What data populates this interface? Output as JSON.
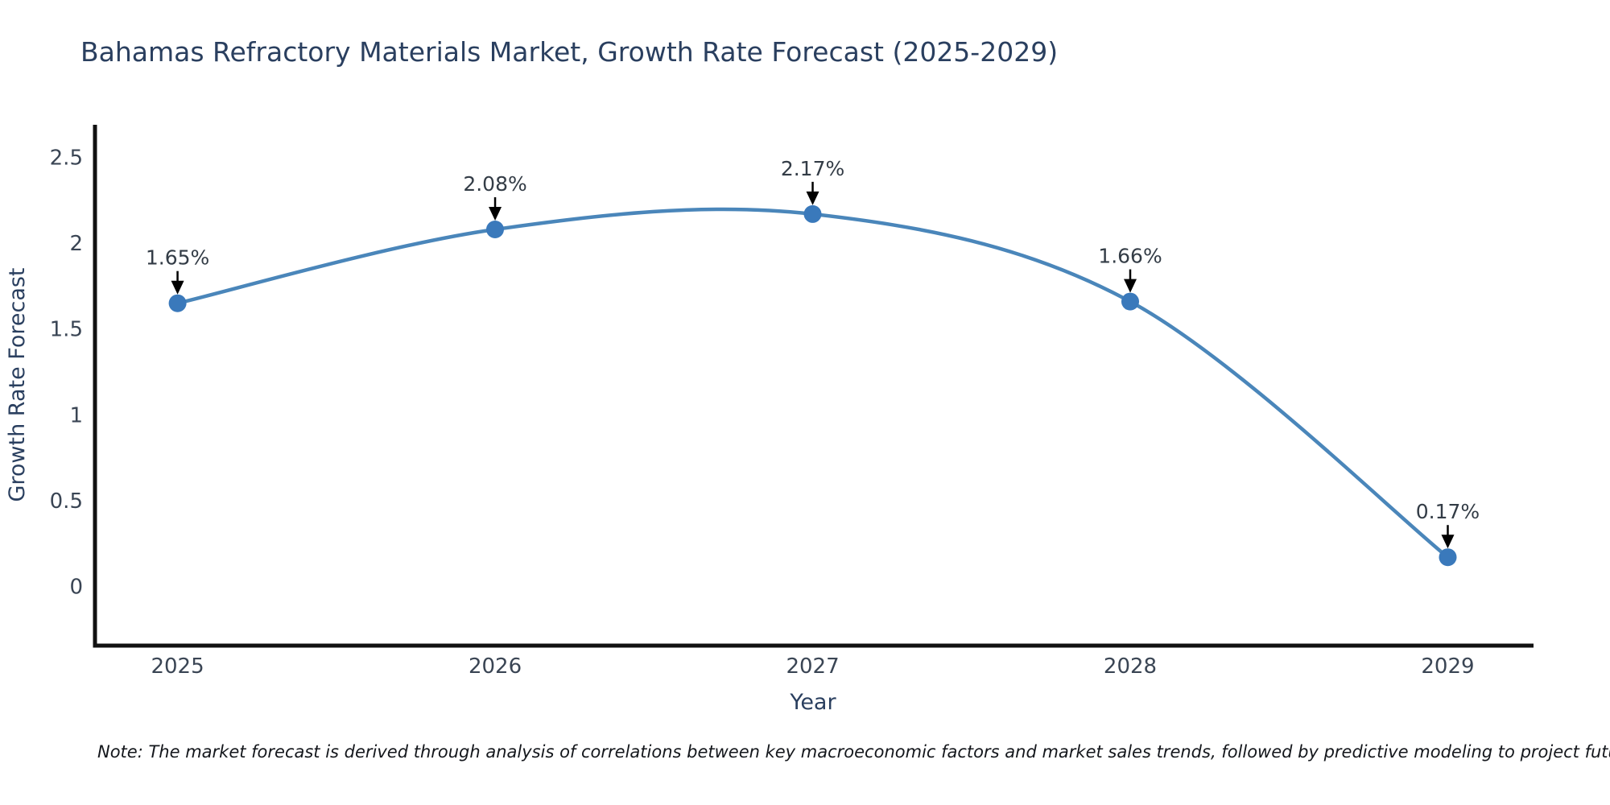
{
  "page": {
    "background": "#ffffff"
  },
  "chart_data": {
    "type": "line",
    "title": "Bahamas Refractory Materials Market, Growth Rate Forecast (2025-2029)",
    "xlabel": "Year",
    "ylabel": "Growth Rate Forecast",
    "x": [
      2025,
      2026,
      2027,
      2028,
      2029
    ],
    "series": [
      {
        "name": "Growth Rate Forecast",
        "values": [
          1.65,
          2.08,
          2.17,
          1.66,
          0.17
        ]
      }
    ],
    "point_labels": [
      "1.65%",
      "2.08%",
      "2.17%",
      "1.66%",
      "0.17%"
    ],
    "x_tick_labels": [
      "2025",
      "2026",
      "2027",
      "2028",
      "2029"
    ],
    "y_ticks": [
      0,
      0.5,
      1,
      1.5,
      2,
      2.5
    ],
    "y_tick_labels": [
      "0",
      "0.5",
      "1",
      "1.5",
      "2",
      "2.5"
    ],
    "xlim": [
      2024.74,
      2029.27
    ],
    "ylim": [
      -0.345,
      2.69
    ],
    "grid": false,
    "legend": false,
    "line_shape": "spline",
    "colors": {
      "line": "#4a86ba",
      "marker": "#3a79bb",
      "axis": "#111111",
      "arrow": "#000000",
      "title_text": "#2a3f5f",
      "axis_title_text": "#2a3f5f",
      "tick_text": "#3a4554",
      "annotation_text": "#333c46",
      "note_text": "#14171c"
    }
  },
  "footer": {
    "note": "Note: The market forecast is derived through analysis of correlations between key macroeconomic factors and market sales trends, followed by predictive modeling to project future sales"
  }
}
